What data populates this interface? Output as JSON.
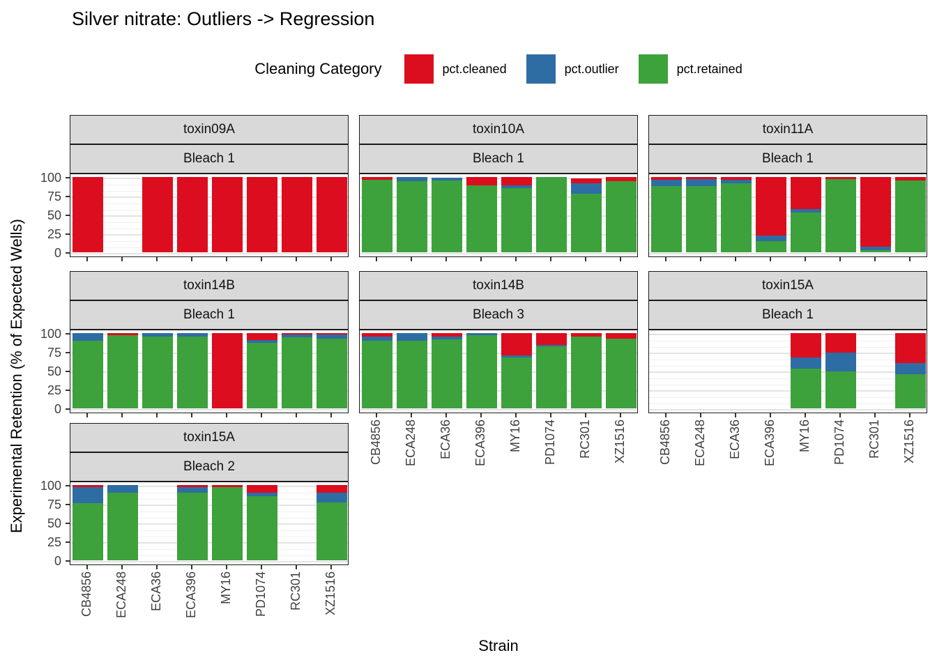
{
  "title": "Silver nitrate: Outliers -> Regression",
  "legend": {
    "title": "Cleaning Category",
    "items": [
      {
        "label": "pct.cleaned",
        "color": "#DC0D1E"
      },
      {
        "label": "pct.outlier",
        "color": "#2E6DA4"
      },
      {
        "label": "pct.retained",
        "color": "#3DA13C"
      }
    ]
  },
  "axes": {
    "x_title": "Strain",
    "y_title": "Experimental Retention (% of Expected Wells)",
    "y_breaks": [
      0,
      25,
      50,
      75,
      100
    ]
  },
  "chart_data": {
    "type": "bar",
    "stacked": true,
    "x": [
      "CB4856",
      "ECA248",
      "ECA36",
      "ECA396",
      "MY16",
      "PD1074",
      "RC301",
      "XZ1516"
    ],
    "ylim": [
      0,
      100
    ],
    "grid": true,
    "legend_position": "top",
    "facets": [
      {
        "toxin": "toxin09A",
        "bleach": "Bleach 1",
        "row": 0,
        "col": 0,
        "show_x_labels": false,
        "cleaned": [
          100,
          null,
          100,
          100,
          100,
          100,
          100,
          100
        ],
        "outlier": [
          0,
          null,
          0,
          0,
          0,
          0,
          0,
          0
        ],
        "retained": [
          0,
          null,
          0,
          0,
          0,
          0,
          0,
          0
        ]
      },
      {
        "toxin": "toxin10A",
        "bleach": "Bleach 1",
        "row": 0,
        "col": 1,
        "show_x_labels": false,
        "cleaned": [
          4,
          0,
          0,
          11,
          11,
          0,
          6,
          6
        ],
        "outlier": [
          0,
          6,
          4,
          0,
          4,
          0,
          14,
          0
        ],
        "retained": [
          96,
          94,
          95,
          89,
          85,
          100,
          78,
          94
        ]
      },
      {
        "toxin": "toxin11A",
        "bleach": "Bleach 1",
        "row": 0,
        "col": 2,
        "show_x_labels": false,
        "cleaned": [
          4,
          3,
          4,
          78,
          43,
          3,
          93,
          5
        ],
        "outlier": [
          8,
          9,
          4,
          7,
          4,
          0,
          4,
          0
        ],
        "retained": [
          88,
          88,
          92,
          15,
          53,
          97,
          3,
          95
        ]
      },
      {
        "toxin": "toxin14B",
        "bleach": "Bleach 1",
        "row": 1,
        "col": 0,
        "show_x_labels": false,
        "cleaned": [
          0,
          3,
          0,
          0,
          100,
          9,
          2,
          2
        ],
        "outlier": [
          10,
          0,
          5,
          5,
          0,
          4,
          4,
          5
        ],
        "retained": [
          90,
          97,
          95,
          95,
          0,
          87,
          94,
          93
        ]
      },
      {
        "toxin": "toxin14B",
        "bleach": "Bleach 3",
        "row": 1,
        "col": 1,
        "show_x_labels": true,
        "cleaned": [
          5,
          0,
          5,
          0,
          30,
          16,
          5,
          7
        ],
        "outlier": [
          5,
          10,
          3,
          3,
          2,
          2,
          0,
          0
        ],
        "retained": [
          90,
          90,
          92,
          97,
          68,
          82,
          95,
          93
        ]
      },
      {
        "toxin": "toxin15A",
        "bleach": "Bleach 1",
        "row": 1,
        "col": 2,
        "show_x_labels": true,
        "cleaned": [
          null,
          null,
          null,
          null,
          32,
          26,
          null,
          40
        ],
        "outlier": [
          null,
          null,
          null,
          null,
          15,
          25,
          null,
          15
        ],
        "retained": [
          null,
          null,
          null,
          null,
          53,
          49,
          null,
          45
        ]
      },
      {
        "toxin": "toxin15A",
        "bleach": "Bleach 2",
        "row": 2,
        "col": 0,
        "show_x_labels": true,
        "cleaned": [
          3,
          0,
          null,
          3,
          3,
          10,
          null,
          10
        ],
        "outlier": [
          21,
          10,
          null,
          7,
          0,
          5,
          null,
          13
        ],
        "retained": [
          76,
          90,
          null,
          90,
          97,
          85,
          null,
          77
        ]
      }
    ]
  }
}
